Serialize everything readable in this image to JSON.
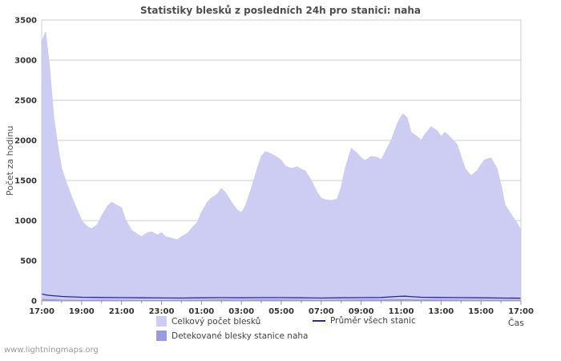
{
  "page": {
    "title": "Statistiky blesků z posledních 24h pro stanici: naha",
    "ylabel": "Počet za hodinu",
    "xlabel": "Čas",
    "watermark": "www.lightningmaps.org"
  },
  "legend": {
    "total": "Celkový počet blesků",
    "avg": "Průměr všech stanic",
    "station": "Detekované blesky stanice naha"
  },
  "colors": {
    "total_area": "#cdcdf4",
    "station_area": "#9a9ade",
    "avg_line": "#2424b8",
    "grid": "#cccccc",
    "axis": "#999999",
    "tick_text": "#333333"
  },
  "chart_data": {
    "type": "area",
    "title": "Statistiky blesků z posledních 24h pro stanici: naha",
    "xlabel": "Čas",
    "ylabel": "Počet za hodinu",
    "xlim": [
      0,
      24
    ],
    "ylim": [
      0,
      3500
    ],
    "yticks": [
      0,
      500,
      1000,
      1500,
      2000,
      2500,
      3000,
      3500
    ],
    "xtick_labels": [
      "17:00",
      "19:00",
      "21:00",
      "23:00",
      "01:00",
      "03:00",
      "05:00",
      "07:00",
      "09:00",
      "11:00",
      "13:00",
      "15:00",
      "17:00"
    ],
    "grid": true,
    "legend_position": "bottom",
    "series": [
      {
        "name": "Celkový počet blesků",
        "type": "area",
        "color": "#cdcdf4",
        "x": [
          0,
          0.2,
          0.4,
          0.6,
          0.8,
          1,
          1.2,
          1.5,
          1.8,
          2,
          2.3,
          2.5,
          2.8,
          3,
          3.3,
          3.5,
          3.7,
          4,
          4.2,
          4.5,
          4.8,
          5,
          5.3,
          5.5,
          5.8,
          6,
          6.2,
          6.5,
          6.8,
          7,
          7.3,
          7.5,
          7.8,
          8,
          8.3,
          8.5,
          8.8,
          9,
          9.2,
          9.5,
          9.8,
          10,
          10.2,
          10.5,
          10.8,
          11,
          11.2,
          11.5,
          11.8,
          12,
          12.2,
          12.5,
          12.8,
          13,
          13.2,
          13.5,
          13.8,
          14,
          14.2,
          14.5,
          14.8,
          15,
          15.2,
          15.5,
          15.8,
          16,
          16.2,
          16.5,
          16.8,
          17,
          17.2,
          17.5,
          17.8,
          18,
          18.1,
          18.3,
          18.5,
          18.8,
          19,
          19.2,
          19.5,
          19.8,
          20,
          20.2,
          20.5,
          20.8,
          21,
          21.2,
          21.5,
          21.8,
          22,
          22.2,
          22.5,
          22.8,
          23,
          23.2,
          23.5,
          23.8,
          24
        ],
        "values": [
          3230,
          3350,
          2900,
          2300,
          1950,
          1650,
          1500,
          1300,
          1120,
          1000,
          920,
          900,
          950,
          1060,
          1180,
          1230,
          1200,
          1160,
          1010,
          880,
          830,
          800,
          850,
          860,
          820,
          850,
          800,
          780,
          760,
          800,
          840,
          900,
          980,
          1100,
          1230,
          1280,
          1330,
          1400,
          1350,
          1230,
          1130,
          1100,
          1180,
          1400,
          1650,
          1800,
          1860,
          1830,
          1790,
          1750,
          1680,
          1650,
          1670,
          1640,
          1620,
          1500,
          1350,
          1280,
          1260,
          1250,
          1270,
          1420,
          1650,
          1900,
          1840,
          1780,
          1750,
          1800,
          1790,
          1760,
          1850,
          2000,
          2200,
          2300,
          2330,
          2280,
          2100,
          2050,
          2000,
          2080,
          2170,
          2120,
          2050,
          2100,
          2030,
          1950,
          1800,
          1650,
          1560,
          1620,
          1700,
          1760,
          1780,
          1650,
          1450,
          1200,
          1080,
          970,
          880
        ]
      },
      {
        "name": "Detekované blesky stanice naha",
        "type": "area",
        "color": "#9a9ade",
        "x": [
          0,
          1,
          2,
          3,
          4,
          5,
          6,
          7,
          8,
          9,
          10,
          11,
          12,
          13,
          14,
          15,
          16,
          17,
          18,
          19,
          20,
          21,
          22,
          23,
          24
        ],
        "values": [
          20,
          10,
          8,
          10,
          8,
          6,
          6,
          8,
          10,
          12,
          10,
          12,
          12,
          10,
          8,
          10,
          12,
          12,
          15,
          12,
          12,
          10,
          10,
          8,
          6
        ]
      },
      {
        "name": "Průměr všech stanic",
        "type": "line",
        "color": "#2424b8",
        "x": [
          0,
          0.3,
          1,
          2,
          3,
          4,
          5,
          6,
          7,
          8,
          9,
          10,
          11,
          12,
          13,
          14,
          15,
          16,
          17,
          17.8,
          18.2,
          19,
          20,
          21,
          22,
          23,
          24
        ],
        "values": [
          85,
          70,
          55,
          45,
          42,
          40,
          38,
          36,
          35,
          38,
          40,
          38,
          40,
          40,
          38,
          35,
          38,
          40,
          42,
          55,
          58,
          45,
          42,
          40,
          38,
          35,
          33
        ]
      }
    ]
  }
}
